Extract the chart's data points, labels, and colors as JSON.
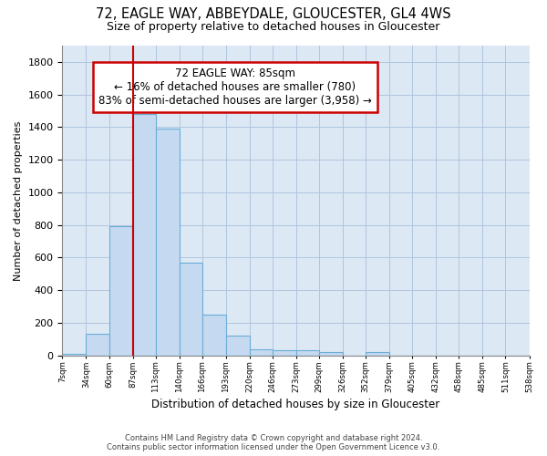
{
  "title1": "72, EAGLE WAY, ABBEYDALE, GLOUCESTER, GL4 4WS",
  "title2": "Size of property relative to detached houses in Gloucester",
  "xlabel": "Distribution of detached houses by size in Gloucester",
  "ylabel": "Number of detached properties",
  "footer1": "Contains HM Land Registry data © Crown copyright and database right 2024.",
  "footer2": "Contains public sector information licensed under the Open Government Licence v3.0.",
  "annotation_line1": "72 EAGLE WAY: 85sqm",
  "annotation_line2": "← 16% of detached houses are smaller (780)",
  "annotation_line3": "83% of semi-detached houses are larger (3,958) →",
  "bar_edges": [
    7,
    34,
    60,
    87,
    113,
    140,
    166,
    193,
    220,
    246,
    273,
    299,
    326,
    352,
    379,
    405,
    432,
    458,
    485,
    511,
    538
  ],
  "bar_values": [
    10,
    130,
    790,
    1480,
    1390,
    570,
    250,
    120,
    35,
    30,
    30,
    20,
    0,
    20,
    0,
    0,
    0,
    0,
    0,
    0
  ],
  "bar_color": "#c5d9f0",
  "bar_edge_color": "#6aaed6",
  "vline_color": "#cc0000",
  "vline_x": 87,
  "annotation_box_color": "#cc0000",
  "background_color": "#ffffff",
  "plot_bg_color": "#dce9f5",
  "grid_color": "#b0c4de",
  "ylim": [
    0,
    1900
  ],
  "yticks": [
    0,
    200,
    400,
    600,
    800,
    1000,
    1200,
    1400,
    1600,
    1800
  ],
  "tick_labels": [
    "7sqm",
    "34sqm",
    "60sqm",
    "87sqm",
    "113sqm",
    "140sqm",
    "166sqm",
    "193sqm",
    "220sqm",
    "246sqm",
    "273sqm",
    "299sqm",
    "326sqm",
    "352sqm",
    "379sqm",
    "405sqm",
    "432sqm",
    "458sqm",
    "485sqm",
    "511sqm",
    "538sqm"
  ],
  "figsize": [
    6.0,
    5.0
  ],
  "dpi": 100
}
